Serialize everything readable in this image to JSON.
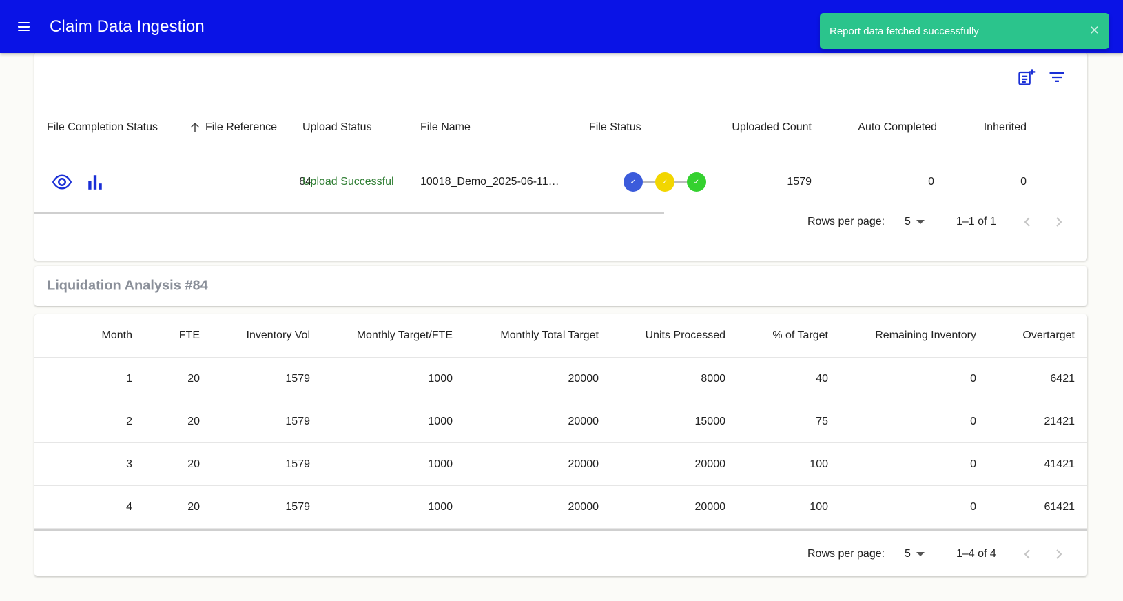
{
  "app": {
    "title": "Claim Data Ingestion"
  },
  "toast": {
    "message": "Report data fetched successfully",
    "close": "✕"
  },
  "files_table": {
    "columns": [
      "File Completion Status",
      "File Reference",
      "Upload Status",
      "File Name",
      "File Status",
      "Uploaded Count",
      "Auto Completed",
      "Inherited"
    ],
    "sort_icon": "arrow-up-icon",
    "rows": [
      {
        "file_reference": "84",
        "upload_status": "Upload Successful",
        "file_name": "10018_Demo_2025-06-11…",
        "file_status_colors": [
          "#3b5bdb",
          "#f2d600",
          "#34d12f"
        ],
        "uploaded_count": "1579",
        "auto_completed": "0",
        "inherited": "0"
      }
    ],
    "pager": {
      "rows_per_page_label": "Rows per page:",
      "rows_per_page": "5",
      "range": "1–1 of 1"
    }
  },
  "analysis": {
    "title": "Liquidation Analysis #84",
    "columns": [
      "Month",
      "FTE",
      "Inventory Vol",
      "Monthly Target/FTE",
      "Monthly Total Target",
      "Units Processed",
      "% of Target",
      "Remaining Inventory",
      "Overtarget"
    ],
    "rows": [
      [
        "1",
        "20",
        "1579",
        "1000",
        "20000",
        "8000",
        "40",
        "0",
        "6421"
      ],
      [
        "2",
        "20",
        "1579",
        "1000",
        "20000",
        "15000",
        "75",
        "0",
        "21421"
      ],
      [
        "3",
        "20",
        "1579",
        "1000",
        "20000",
        "20000",
        "100",
        "0",
        "41421"
      ],
      [
        "4",
        "20",
        "1579",
        "1000",
        "20000",
        "20000",
        "100",
        "0",
        "61421"
      ]
    ],
    "pager": {
      "rows_per_page_label": "Rows per page:",
      "rows_per_page": "5",
      "range": "1–4 of 4"
    }
  },
  "colors": {
    "appbar": "#0a13e6",
    "toast": "#2bc48c",
    "success_text": "#2e7d32",
    "icon_blue": "#1a2fd6"
  }
}
